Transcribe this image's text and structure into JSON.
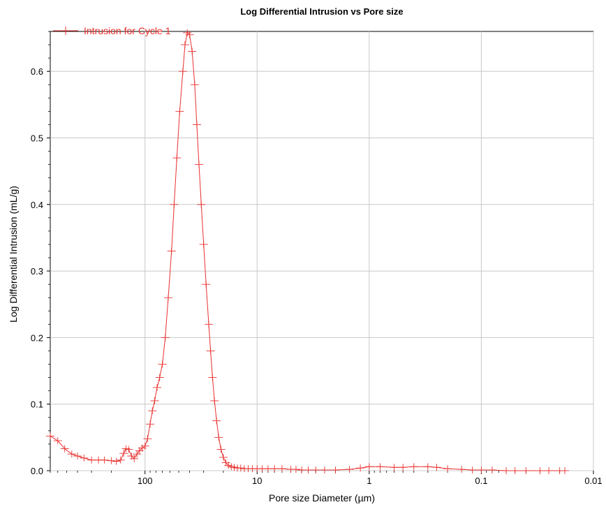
{
  "chart_data": {
    "type": "line",
    "title": "Log Differential Intrusion vs Pore size",
    "xlabel": "Pore size Diameter (µm)",
    "ylabel": "Log Differential Intrusion (mL/g)",
    "x_scale": "log",
    "x_reversed": true,
    "xlim": [
      700,
      0.01
    ],
    "ylim": [
      0,
      0.66
    ],
    "x_ticks": [
      100,
      10,
      1,
      0.1,
      0.01
    ],
    "x_tick_labels": [
      "100",
      "10",
      "1",
      "0.1",
      "0.01"
    ],
    "y_ticks": [
      0.0,
      0.1,
      0.2,
      0.3,
      0.4,
      0.5,
      0.6
    ],
    "y_tick_labels": [
      "0.0",
      "0.1",
      "0.2",
      "0.3",
      "0.4",
      "0.5",
      "0.6"
    ],
    "grid": true,
    "legend_position": "top-left",
    "series": [
      {
        "name": "Intrusion for Cycle 1",
        "color": "#e8312f",
        "marker": "plus",
        "x": [
          700,
          600,
          520,
          450,
          400,
          350,
          300,
          260,
          230,
          200,
          180,
          165,
          155,
          148,
          140,
          132,
          125,
          118,
          112,
          106,
          100,
          95,
          90,
          86,
          82,
          78,
          74,
          70,
          66,
          62,
          58,
          55,
          52,
          49,
          46,
          44,
          42,
          40,
          38,
          36,
          34.5,
          33,
          31.5,
          30,
          28.5,
          27,
          26,
          25,
          24,
          23,
          22,
          21,
          20,
          19,
          18,
          17,
          16,
          15,
          14,
          13,
          12,
          11,
          10,
          9,
          8,
          7,
          6,
          5,
          4.5,
          4,
          3.5,
          3,
          2.5,
          2,
          1.5,
          1.2,
          1,
          0.8,
          0.6,
          0.5,
          0.4,
          0.3,
          0.25,
          0.2,
          0.15,
          0.12,
          0.1,
          0.08,
          0.06,
          0.05,
          0.04,
          0.03,
          0.025,
          0.02,
          0.018
        ],
        "y": [
          0.052,
          0.045,
          0.033,
          0.025,
          0.022,
          0.019,
          0.016,
          0.016,
          0.016,
          0.015,
          0.014,
          0.016,
          0.026,
          0.033,
          0.032,
          0.022,
          0.018,
          0.025,
          0.03,
          0.034,
          0.037,
          0.048,
          0.07,
          0.09,
          0.105,
          0.125,
          0.14,
          0.16,
          0.2,
          0.26,
          0.33,
          0.4,
          0.47,
          0.54,
          0.6,
          0.64,
          0.658,
          0.655,
          0.63,
          0.58,
          0.52,
          0.46,
          0.4,
          0.34,
          0.28,
          0.22,
          0.18,
          0.14,
          0.105,
          0.075,
          0.05,
          0.032,
          0.02,
          0.012,
          0.008,
          0.006,
          0.005,
          0.004,
          0.004,
          0.003,
          0.003,
          0.003,
          0.003,
          0.003,
          0.003,
          0.003,
          0.003,
          0.002,
          0.002,
          0.001,
          0.001,
          0.001,
          0.001,
          0.001,
          0.002,
          0.004,
          0.006,
          0.006,
          0.005,
          0.005,
          0.006,
          0.006,
          0.005,
          0.003,
          0.002,
          0.001,
          0.001,
          0.001,
          0.0,
          0.0,
          0.0,
          0.0,
          0.0,
          0.0,
          0.0
        ]
      }
    ]
  }
}
